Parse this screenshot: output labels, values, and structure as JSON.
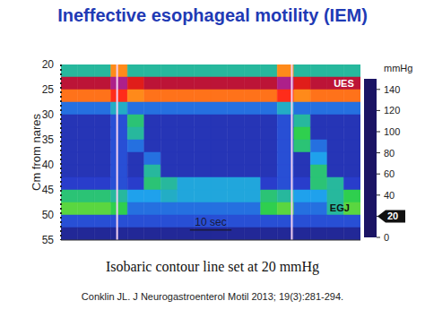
{
  "title": "Ineffective esophageal motility (IEM)",
  "caption": "Isobaric contour line set at 20 mmHg",
  "citation": "Conklin JL. J Neurogastroenterol Motil 2013; 19(3):281-294.",
  "chart_data": {
    "type": "heatmap",
    "y_label": "Cm from nares",
    "xlim": [
      0,
      72
    ],
    "ylim": [
      20,
      55
    ],
    "yticks": [
      20,
      25,
      30,
      35,
      40,
      45,
      50,
      55
    ],
    "tick_labels": "y",
    "x_edges": [
      0,
      4,
      8,
      12,
      16,
      20,
      24,
      28,
      32,
      36,
      40,
      44,
      48,
      52,
      56,
      60,
      64,
      68,
      72
    ],
    "y_edges": [
      20,
      22.5,
      25,
      27.5,
      30,
      32.5,
      35,
      37.5,
      40,
      42.5,
      45,
      47.5,
      50,
      52.5,
      55
    ],
    "values": [
      [
        30,
        30,
        30,
        80,
        30,
        30,
        30,
        30,
        30,
        30,
        30,
        30,
        30,
        80,
        30,
        30,
        30,
        30
      ],
      [
        125,
        125,
        125,
        140,
        110,
        125,
        125,
        125,
        125,
        125,
        125,
        125,
        125,
        140,
        110,
        125,
        125,
        125
      ],
      [
        85,
        85,
        85,
        100,
        80,
        85,
        85,
        85,
        85,
        85,
        85,
        85,
        85,
        100,
        80,
        85,
        85,
        85
      ],
      [
        15,
        15,
        15,
        25,
        15,
        15,
        15,
        15,
        15,
        15,
        15,
        15,
        15,
        25,
        15,
        15,
        15,
        15
      ],
      [
        8,
        8,
        8,
        12,
        35,
        8,
        8,
        8,
        8,
        8,
        8,
        8,
        8,
        12,
        30,
        8,
        8,
        8
      ],
      [
        8,
        8,
        8,
        12,
        30,
        8,
        8,
        8,
        8,
        8,
        8,
        8,
        8,
        12,
        40,
        8,
        8,
        8
      ],
      [
        8,
        8,
        8,
        12,
        15,
        8,
        8,
        8,
        8,
        8,
        8,
        8,
        8,
        12,
        35,
        15,
        8,
        8
      ],
      [
        8,
        8,
        8,
        12,
        8,
        15,
        8,
        8,
        8,
        8,
        8,
        8,
        8,
        12,
        8,
        20,
        8,
        8
      ],
      [
        8,
        8,
        8,
        12,
        8,
        30,
        8,
        8,
        8,
        8,
        8,
        8,
        8,
        12,
        8,
        35,
        8,
        8
      ],
      [
        10,
        10,
        10,
        12,
        10,
        35,
        30,
        22,
        22,
        22,
        22,
        22,
        10,
        12,
        10,
        35,
        30,
        10
      ],
      [
        35,
        35,
        35,
        30,
        20,
        20,
        25,
        22,
        22,
        22,
        22,
        22,
        35,
        30,
        20,
        20,
        30,
        40
      ],
      [
        45,
        45,
        45,
        40,
        15,
        15,
        15,
        15,
        15,
        15,
        15,
        15,
        40,
        45,
        15,
        15,
        30,
        45
      ],
      [
        12,
        12,
        12,
        12,
        12,
        12,
        12,
        12,
        12,
        12,
        12,
        12,
        12,
        12,
        12,
        12,
        12,
        12
      ],
      [
        5,
        5,
        5,
        5,
        5,
        5,
        5,
        5,
        5,
        5,
        5,
        5,
        5,
        5,
        5,
        5,
        5,
        5
      ]
    ],
    "swallows": [
      13.5,
      55.5
    ],
    "annotations": [
      {
        "text": "UES",
        "x": 68,
        "y": 23.8
      },
      {
        "text": "EGJ",
        "x": 67,
        "y": 48.5
      }
    ],
    "scale_bar": {
      "label": "10 sec",
      "value": 10
    },
    "colorbar": {
      "label": "mmHg",
      "range": [
        0,
        150
      ],
      "ticks": [
        0,
        20,
        40,
        60,
        80,
        100,
        120,
        140
      ],
      "contour": 20
    }
  }
}
